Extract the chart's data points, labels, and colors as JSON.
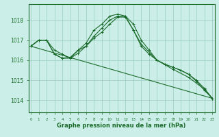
{
  "title": "Graphe pression niveau de la mer (hPa)",
  "bg_color": "#cceee8",
  "grid_color": "#99ccbb",
  "line_color": "#1a6b2a",
  "x_ticks": [
    0,
    1,
    2,
    3,
    4,
    5,
    6,
    7,
    8,
    9,
    10,
    11,
    12,
    13,
    14,
    15,
    16,
    17,
    18,
    19,
    20,
    21,
    22,
    23
  ],
  "y_ticks": [
    1014,
    1015,
    1016,
    1017,
    1018
  ],
  "ylim": [
    1013.4,
    1018.8
  ],
  "xlim": [
    -0.3,
    23.3
  ],
  "series1_x": [
    0,
    1,
    2,
    3,
    4,
    5,
    6,
    7,
    8,
    9,
    10,
    11,
    12,
    13,
    14,
    15,
    16,
    17,
    18,
    19,
    20,
    21,
    22,
    23
  ],
  "series1_y": [
    1016.7,
    1017.0,
    1017.0,
    1016.3,
    1016.1,
    1016.1,
    1016.5,
    1016.7,
    1017.2,
    1017.6,
    1018.0,
    1018.2,
    1018.2,
    1017.8,
    1017.0,
    1016.5,
    1016.0,
    1015.8,
    1015.65,
    1015.5,
    1015.3,
    1015.0,
    1014.6,
    1014.1
  ],
  "series2_x": [
    0,
    1,
    2,
    3,
    4,
    5,
    6,
    7,
    8,
    9,
    10,
    11,
    12,
    13,
    14,
    15,
    16,
    17,
    18,
    19,
    20,
    21,
    22,
    23
  ],
  "series2_y": [
    1016.7,
    1017.0,
    1017.0,
    1016.5,
    1016.3,
    1016.1,
    1016.35,
    1016.7,
    1017.1,
    1017.4,
    1017.8,
    1018.15,
    1018.15,
    1017.5,
    1016.7,
    1016.3,
    1016.0,
    1015.8,
    1015.65,
    1015.5,
    1015.3,
    1014.95,
    1014.5,
    1014.1
  ],
  "series3_x": [
    0,
    1,
    2,
    3,
    4,
    5,
    6,
    7,
    8,
    9,
    10,
    11,
    12,
    13,
    14,
    16,
    18,
    20,
    22,
    23
  ],
  "series3_y": [
    1016.7,
    1017.0,
    1017.0,
    1016.3,
    1016.1,
    1016.15,
    1016.5,
    1016.85,
    1017.5,
    1017.8,
    1018.2,
    1018.3,
    1018.2,
    1017.5,
    1016.8,
    1016.0,
    1015.55,
    1015.15,
    1014.55,
    1014.1
  ],
  "series4_x": [
    0,
    23
  ],
  "series4_y": [
    1016.7,
    1014.1
  ]
}
